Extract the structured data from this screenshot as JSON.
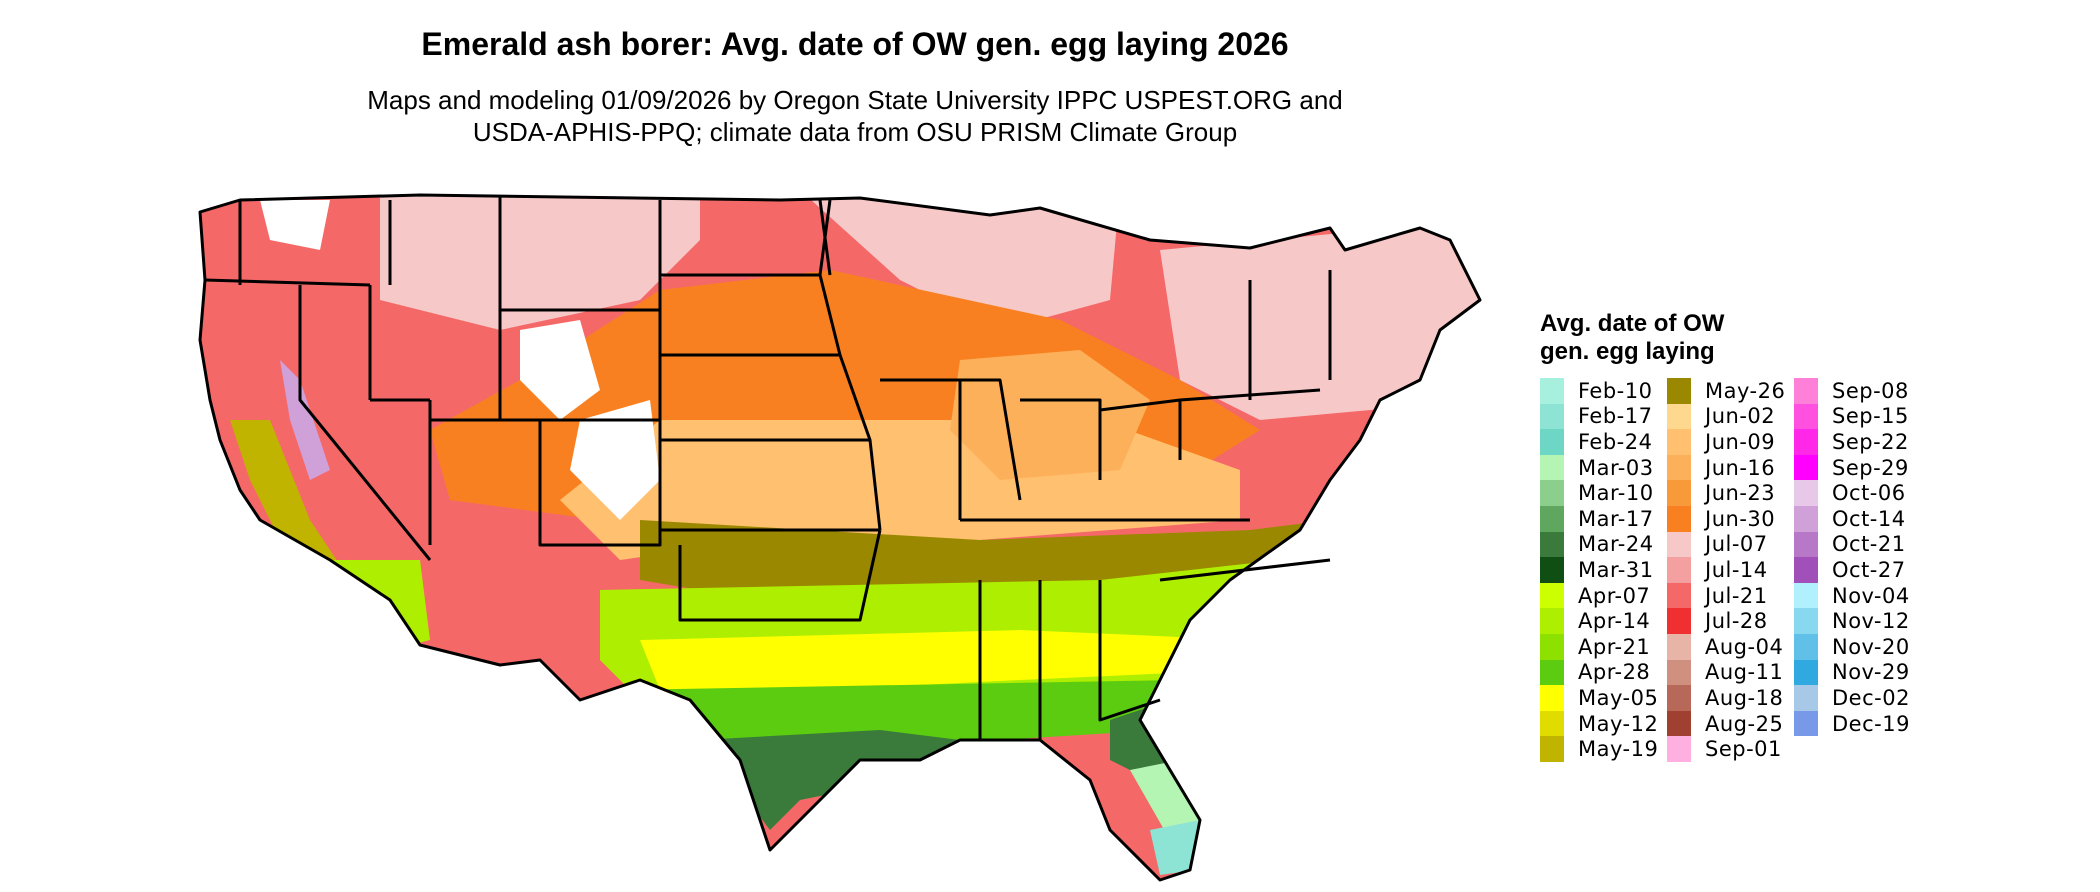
{
  "title": "Emerald ash borer: Avg. date of OW gen. egg laying 2026",
  "subtitle_line1": "Maps and modeling 01/09/2026 by Oregon State University IPPC USPEST.ORG and",
  "subtitle_line2": "USDA-APHIS-PPQ; climate data from OSU PRISM Climate Group",
  "legend": {
    "title_line1": "Avg. date of OW",
    "title_line2": "gen. egg laying",
    "items": [
      {
        "label": "Feb-10",
        "color": "#a8f0de"
      },
      {
        "label": "Feb-17",
        "color": "#8ee4d4"
      },
      {
        "label": "Feb-24",
        "color": "#6dd6c5"
      },
      {
        "label": "Mar-03",
        "color": "#b4f5b4"
      },
      {
        "label": "Mar-10",
        "color": "#8ccf8c"
      },
      {
        "label": "Mar-17",
        "color": "#5fa65f"
      },
      {
        "label": "Mar-24",
        "color": "#3a7a3a"
      },
      {
        "label": "Mar-31",
        "color": "#0f4f14"
      },
      {
        "label": "Apr-07",
        "color": "#ccff00"
      },
      {
        "label": "Apr-14",
        "color": "#aeee00"
      },
      {
        "label": "Apr-21",
        "color": "#8ee000"
      },
      {
        "label": "Apr-28",
        "color": "#5ccc10"
      },
      {
        "label": "May-05",
        "color": "#ffff00"
      },
      {
        "label": "May-12",
        "color": "#e0dc00"
      },
      {
        "label": "May-19",
        "color": "#c0b400"
      },
      {
        "label": "May-26",
        "color": "#9a8800"
      },
      {
        "label": "Jun-02",
        "color": "#ffd890"
      },
      {
        "label": "Jun-09",
        "color": "#ffc070"
      },
      {
        "label": "Jun-16",
        "color": "#fdb05a"
      },
      {
        "label": "Jun-23",
        "color": "#f99a3a"
      },
      {
        "label": "Jun-30",
        "color": "#f98020"
      },
      {
        "label": "Jul-07",
        "color": "#f7c8c8"
      },
      {
        "label": "Jul-14",
        "color": "#f5a0a0"
      },
      {
        "label": "Jul-21",
        "color": "#f56868"
      },
      {
        "label": "Jul-28",
        "color": "#f03030"
      },
      {
        "label": "Aug-04",
        "color": "#e8b4a8"
      },
      {
        "label": "Aug-11",
        "color": "#d09080"
      },
      {
        "label": "Aug-18",
        "color": "#b86858"
      },
      {
        "label": "Aug-25",
        "color": "#a04030"
      },
      {
        "label": "Sep-01",
        "color": "#ffb0e0"
      },
      {
        "label": "Sep-08",
        "color": "#ff80d8"
      },
      {
        "label": "Sep-15",
        "color": "#ff50e0"
      },
      {
        "label": "Sep-22",
        "color": "#ff28e8"
      },
      {
        "label": "Sep-29",
        "color": "#ff00ff"
      },
      {
        "label": "Oct-06",
        "color": "#e8c8e8"
      },
      {
        "label": "Oct-14",
        "color": "#d0a0d8"
      },
      {
        "label": "Oct-21",
        "color": "#b878c8"
      },
      {
        "label": "Oct-27",
        "color": "#a050b8"
      },
      {
        "label": "Nov-04",
        "color": "#b0f0ff"
      },
      {
        "label": "Nov-12",
        "color": "#88d8f0"
      },
      {
        "label": "Nov-20",
        "color": "#60c0e8"
      },
      {
        "label": "Nov-29",
        "color": "#30a8e0"
      },
      {
        "label": "Dec-02",
        "color": "#a8c8e8"
      },
      {
        "label": "Dec-19",
        "color": "#7898e8"
      }
    ]
  },
  "map_colors": {
    "west": "#f56868",
    "north": "#f7c8c8",
    "plains_north": "#f98020",
    "plains_mid": "#ffc070",
    "midwest": "#fdb05a",
    "southern_plains": "#9a8800",
    "south": "#aeee00",
    "gulf": "#5ccc10",
    "yellow_band": "#ffff00",
    "coast": "#3a7a3a",
    "florida_tip": "#8ee4d4",
    "florida_mid": "#b4f5b4",
    "ca_valley": "#c0b400",
    "high_mountain": "#ffffff",
    "sierra": "#d0a0d8",
    "border": "#000000"
  }
}
